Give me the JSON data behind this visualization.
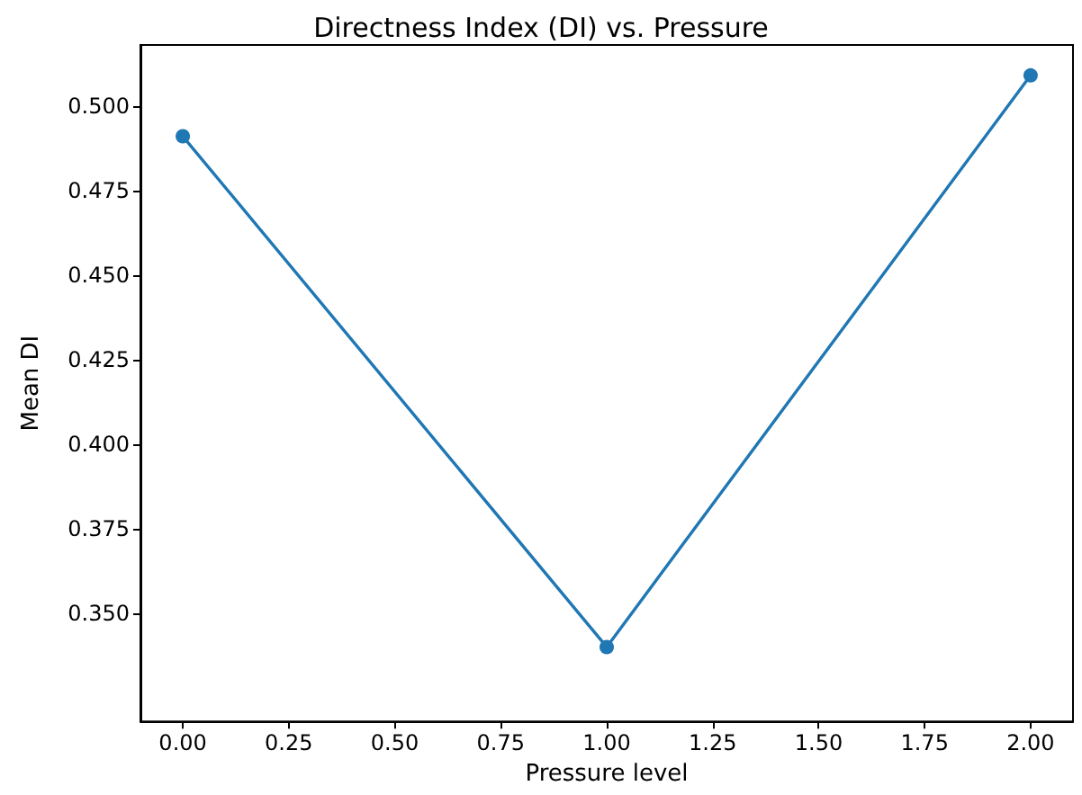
{
  "chart_data": {
    "type": "line",
    "title": "Directness Index (DI) vs. Pressure",
    "xlabel": "Pressure level",
    "ylabel": "Mean DI",
    "x": [
      0,
      1,
      2
    ],
    "series": [
      {
        "color": "#1f77b4",
        "values": [
          0.491,
          0.34,
          0.509
        ]
      }
    ],
    "xlim": [
      -0.1,
      2.1
    ],
    "xticks": [
      {
        "value": 0,
        "label": "0.00"
      },
      {
        "value": 0.25,
        "label": "0.25"
      },
      {
        "value": 0.5,
        "label": "0.50"
      },
      {
        "value": 0.75,
        "label": "0.75"
      },
      {
        "value": 1,
        "label": "1.00"
      },
      {
        "value": 1.25,
        "label": "1.25"
      },
      {
        "value": 1.5,
        "label": "1.50"
      },
      {
        "value": 1.75,
        "label": "1.75"
      },
      {
        "value": 2,
        "label": "2.00"
      }
    ],
    "ylim": [
      0.318,
      0.518
    ],
    "yticks": [
      {
        "value": 0.35,
        "label": "0.350"
      },
      {
        "value": 0.375,
        "label": "0.375"
      },
      {
        "value": 0.4,
        "label": "0.400"
      },
      {
        "value": 0.425,
        "label": "0.425"
      },
      {
        "value": 0.45,
        "label": "0.450"
      },
      {
        "value": 0.475,
        "label": "0.475"
      },
      {
        "value": 0.5,
        "label": "0.500"
      }
    ],
    "grid": false,
    "marker": "circle",
    "line_style": "solid"
  }
}
